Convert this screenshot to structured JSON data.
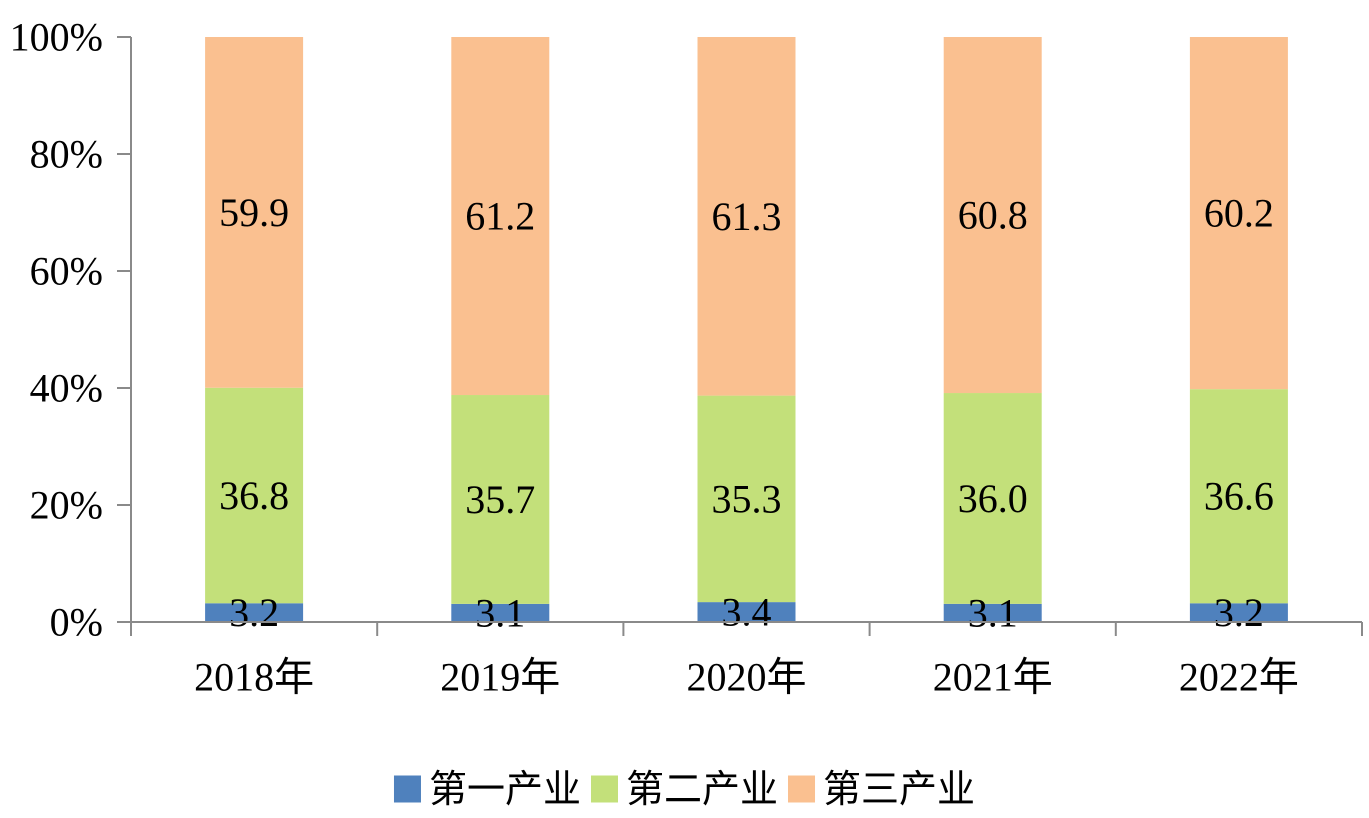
{
  "chart_data": {
    "type": "bar",
    "stacked": true,
    "percent_stacked": true,
    "categories": [
      "2018年",
      "2019年",
      "2020年",
      "2021年",
      "2022年"
    ],
    "series": [
      {
        "name": "第一产业",
        "values": [
          3.2,
          3.1,
          3.4,
          3.1,
          3.2
        ],
        "color": "#4f81bd",
        "labels": [
          "3.2",
          "3.1",
          "3.4",
          "3.1",
          "3.2"
        ]
      },
      {
        "name": "第二产业",
        "values": [
          36.8,
          35.7,
          35.3,
          36.0,
          36.6
        ],
        "color": "#c3e07a",
        "labels": [
          "36.8",
          "35.7",
          "35.3",
          "36.0",
          "36.6"
        ]
      },
      {
        "name": "第三产业",
        "values": [
          59.9,
          61.2,
          61.3,
          60.8,
          60.2
        ],
        "color": "#fac090",
        "labels": [
          "59.9",
          "61.2",
          "61.3",
          "60.8",
          "60.2"
        ]
      }
    ],
    "ylim": [
      0,
      100
    ],
    "yticks": [
      0,
      20,
      40,
      60,
      80,
      100
    ],
    "ytick_labels": [
      "0%",
      "20%",
      "40%",
      "60%",
      "80%",
      "100%"
    ],
    "title": "",
    "xlabel": "",
    "ylabel": "",
    "grid": false,
    "legend_position": "bottom"
  }
}
